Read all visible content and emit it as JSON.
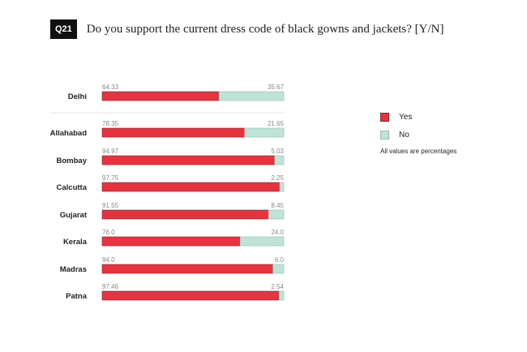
{
  "question_tag": "Q21",
  "question_text": "Do you support the current dress code of black gowns and jackets? [Y/N]",
  "legend": {
    "yes_label": "Yes",
    "no_label": "No",
    "note": "All values are percentages"
  },
  "colors": {
    "yes": "#e5343f",
    "no": "#bfe3d7",
    "yes_stroke": "#9b1d26",
    "no_stroke": "#8fbfb0"
  },
  "chart_data": {
    "type": "bar",
    "orientation": "horizontal",
    "stacked": true,
    "categories": [
      "Delhi",
      "Allahabad",
      "Bombay",
      "Calcutta",
      "Gujarat",
      "Kerala",
      "Madras",
      "Patna"
    ],
    "series": [
      {
        "name": "Yes",
        "values": [
          64.33,
          78.35,
          94.97,
          97.75,
          91.55,
          76.0,
          94.0,
          97.46
        ],
        "labels": [
          "64.33",
          "78.35",
          "94.97",
          "97.75",
          "91.55",
          "76.0",
          "94.0",
          "97.46"
        ]
      },
      {
        "name": "No",
        "values": [
          35.67,
          21.65,
          5.03,
          2.25,
          8.45,
          24.0,
          6.0,
          2.54
        ],
        "labels": [
          "35.67",
          "21.65",
          "5.03",
          "2.25",
          "8.45",
          "24.0",
          "6.0",
          "2.54"
        ]
      }
    ],
    "xlim": [
      0,
      100
    ],
    "grid": false,
    "legend_position": "right"
  }
}
